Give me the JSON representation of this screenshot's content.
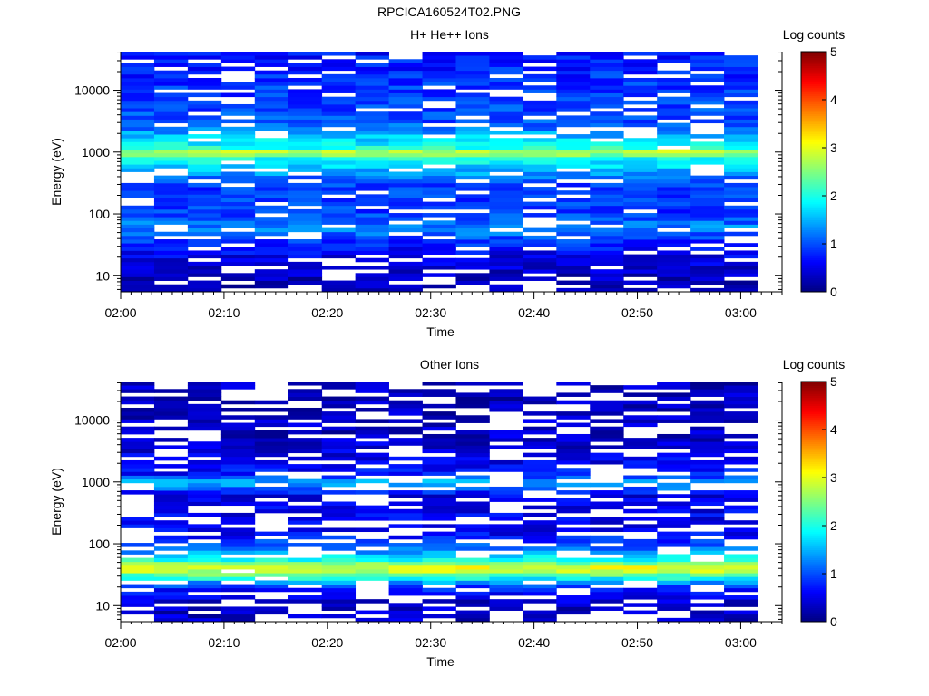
{
  "figure": {
    "title": "RPCICA160524T02.PNG"
  },
  "chart_data": [
    {
      "type": "heatmap",
      "title": "H+ He++ Ions",
      "xlabel": "Time",
      "ylabel": "Energy (eV)",
      "ylog": true,
      "ylim": [
        5.5,
        42000
      ],
      "xlim": [
        "02:00",
        "03:04"
      ],
      "x_ticks": [
        "02:00",
        "02:10",
        "02:20",
        "02:30",
        "02:40",
        "02:50",
        "03:00"
      ],
      "y_ticks": [
        "10",
        "100",
        "1000",
        "10000"
      ],
      "colorbar": {
        "label": "Log counts",
        "range": [
          0,
          5
        ],
        "ticks": [
          "0",
          "1",
          "2",
          "3",
          "4",
          "5"
        ]
      },
      "time_bin_count": 19,
      "energy_profile": [
        {
          "energy_ev": 7.5,
          "log_counts": 0.2
        },
        {
          "energy_ev": 11,
          "log_counts": 0.35
        },
        {
          "energy_ev": 20,
          "log_counts": 0.5
        },
        {
          "energy_ev": 38,
          "log_counts": 0.9
        },
        {
          "energy_ev": 60,
          "log_counts": 1.3
        },
        {
          "energy_ev": 100,
          "log_counts": 0.9
        },
        {
          "energy_ev": 300,
          "log_counts": 0.9
        },
        {
          "energy_ev": 800,
          "log_counts": 2.0
        },
        {
          "energy_ev": 1000,
          "log_counts": 2.9
        },
        {
          "energy_ev": 1200,
          "log_counts": 2.0
        },
        {
          "energy_ev": 3000,
          "log_counts": 1.0
        },
        {
          "energy_ev": 10000,
          "log_counts": 0.9
        },
        {
          "energy_ev": 40000,
          "log_counts": 0.7
        }
      ]
    },
    {
      "type": "heatmap",
      "title": "Other Ions",
      "xlabel": "Time",
      "ylabel": "Energy (eV)",
      "ylog": true,
      "ylim": [
        5.5,
        42000
      ],
      "xlim": [
        "02:00",
        "03:04"
      ],
      "x_ticks": [
        "02:00",
        "02:10",
        "02:20",
        "02:30",
        "02:40",
        "02:50",
        "03:00"
      ],
      "y_ticks": [
        "10",
        "100",
        "1000",
        "10000"
      ],
      "colorbar": {
        "label": "Log counts",
        "range": [
          0,
          5
        ],
        "ticks": [
          "0",
          "1",
          "2",
          "3",
          "4",
          "5"
        ]
      },
      "time_bin_count": 19,
      "energy_profile": [
        {
          "energy_ev": 7.5,
          "log_counts": 0.35
        },
        {
          "energy_ev": 12,
          "log_counts": 0.4
        },
        {
          "energy_ev": 20,
          "log_counts": 0.8
        },
        {
          "energy_ev": 30,
          "log_counts": 2.2
        },
        {
          "energy_ev": 40,
          "log_counts": 3.1
        },
        {
          "energy_ev": 55,
          "log_counts": 2.0
        },
        {
          "energy_ev": 80,
          "log_counts": 1.2
        },
        {
          "energy_ev": 150,
          "log_counts": 0.6
        },
        {
          "energy_ev": 600,
          "log_counts": 0.5
        },
        {
          "energy_ev": 1000,
          "log_counts": 1.6
        },
        {
          "energy_ev": 1300,
          "log_counts": 0.7
        },
        {
          "energy_ev": 5000,
          "log_counts": 0.35
        },
        {
          "energy_ev": 40000,
          "log_counts": 0.3
        }
      ]
    }
  ]
}
